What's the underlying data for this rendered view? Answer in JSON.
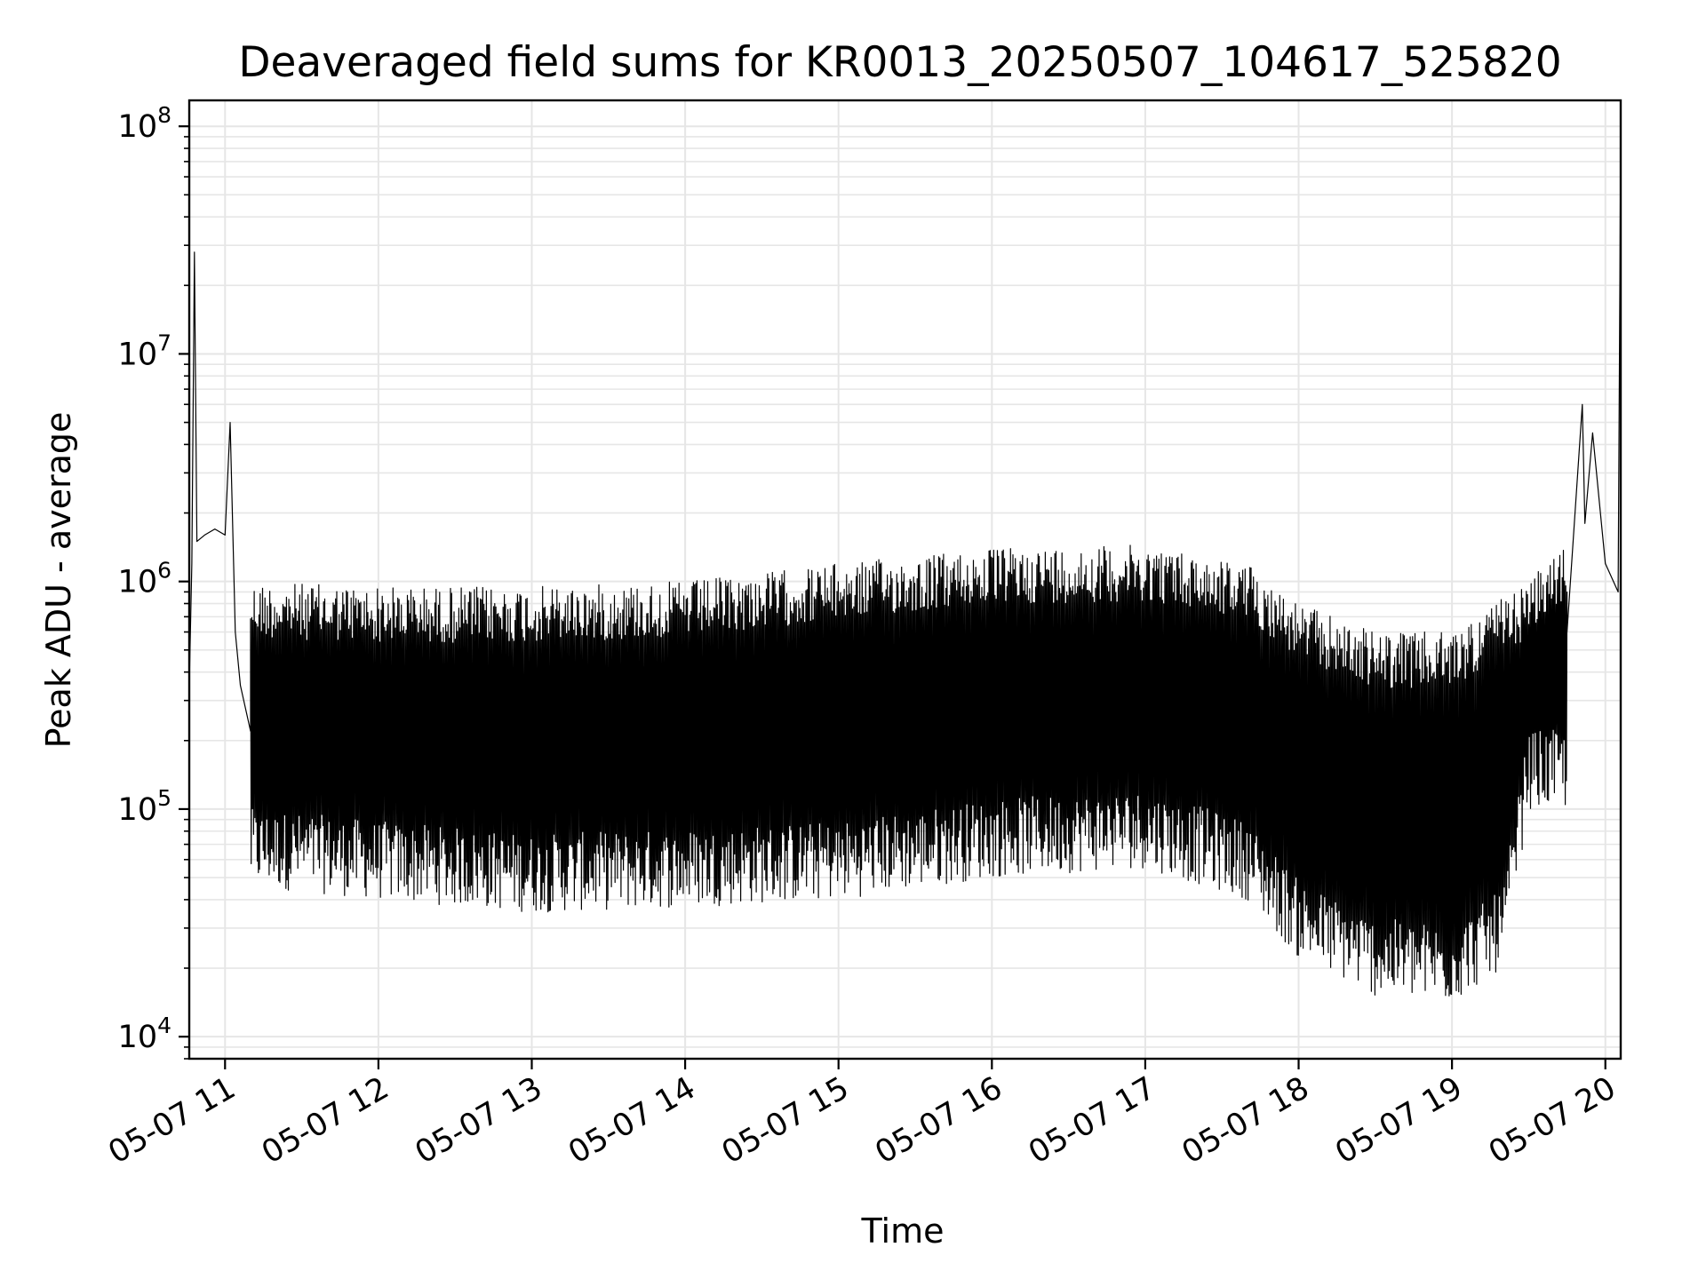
{
  "chart_data": {
    "type": "line",
    "title": "Deaveraged field sums for KR0013_20250507_104617_525820",
    "xlabel": "Time",
    "ylabel": "Peak ADU - average",
    "x_scale": "time",
    "y_scale": "log",
    "xlim": [
      "2025-05-07 10:46",
      "2025-05-07 20:06"
    ],
    "ylim": [
      8000,
      130000000
    ],
    "x_ticks": [
      {
        "value": "2025-05-07 11:00",
        "label": "05-07 11"
      },
      {
        "value": "2025-05-07 12:00",
        "label": "05-07 12"
      },
      {
        "value": "2025-05-07 13:00",
        "label": "05-07 13"
      },
      {
        "value": "2025-05-07 14:00",
        "label": "05-07 14"
      },
      {
        "value": "2025-05-07 15:00",
        "label": "05-07 15"
      },
      {
        "value": "2025-05-07 16:00",
        "label": "05-07 16"
      },
      {
        "value": "2025-05-07 17:00",
        "label": "05-07 17"
      },
      {
        "value": "2025-05-07 18:00",
        "label": "05-07 18"
      },
      {
        "value": "2025-05-07 19:00",
        "label": "05-07 19"
      },
      {
        "value": "2025-05-07 20:00",
        "label": "05-07 20"
      }
    ],
    "y_ticks": [
      {
        "value": 10000,
        "base": "10",
        "exp": "4"
      },
      {
        "value": 100000,
        "base": "10",
        "exp": "5"
      },
      {
        "value": 1000000,
        "base": "10",
        "exp": "6"
      },
      {
        "value": 10000000,
        "base": "10",
        "exp": "7"
      },
      {
        "value": 100000000,
        "base": "10",
        "exp": "8"
      }
    ],
    "grid": true,
    "grid_minor": true,
    "line_color": "#000000",
    "series": [
      {
        "values": [
          [
            "2025-05-07 10:46",
            350000
          ],
          [
            "2025-05-07 10:47",
            1200000
          ],
          [
            "2025-05-07 10:48",
            28000000
          ],
          [
            "2025-05-07 10:49",
            1500000
          ],
          [
            "2025-05-07 10:52",
            1600000
          ],
          [
            "2025-05-07 10:56",
            1700000
          ],
          [
            "2025-05-07 11:00",
            1600000
          ],
          [
            "2025-05-07 11:02",
            5000000
          ],
          [
            "2025-05-07 11:04",
            600000
          ],
          [
            "2025-05-07 11:06",
            350000
          ],
          [
            "2025-05-07 11:10",
            220000
          ],
          [
            "2025-05-07 11:15",
            200000
          ],
          [
            "2025-05-07 11:20",
            60000
          ],
          [
            "2025-05-07 11:30",
            22000
          ],
          [
            "2025-05-07 12:00",
            50000
          ],
          [
            "2025-05-07 12:30",
            60000
          ],
          [
            "2025-05-07 13:00",
            50000
          ],
          [
            "2025-05-07 13:30",
            50000
          ],
          [
            "2025-05-07 14:00",
            45000
          ],
          [
            "2025-05-07 14:30",
            45000
          ],
          [
            "2025-05-07 15:00",
            40000
          ],
          [
            "2025-05-07 15:30",
            50000
          ],
          [
            "2025-05-07 16:00",
            50000
          ],
          [
            "2025-05-07 16:30",
            55000
          ],
          [
            "2025-05-07 17:00",
            60000
          ],
          [
            "2025-05-07 17:30",
            50000
          ],
          [
            "2025-05-07 18:00",
            20000
          ],
          [
            "2025-05-07 18:30",
            15000
          ],
          [
            "2025-05-07 19:00",
            15000
          ],
          [
            "2025-05-07 19:15",
            20000
          ],
          [
            "2025-05-07 19:25",
            100000
          ],
          [
            "2025-05-07 19:35",
            300000
          ],
          [
            "2025-05-07 19:45",
            600000
          ],
          [
            "2025-05-07 19:51",
            6000000
          ],
          [
            "2025-05-07 19:52",
            1800000
          ],
          [
            "2025-05-07 19:55",
            4500000
          ],
          [
            "2025-05-07 20:00",
            1200000
          ],
          [
            "2025-05-07 20:05",
            900000
          ],
          [
            "2025-05-07 20:06",
            90000000
          ]
        ]
      }
    ],
    "envelope": {
      "note_x": "2025-05-07",
      "upper": [
        [
          "2025-05-07 11:10",
          1000000
        ],
        [
          "2025-05-07 12:00",
          950000
        ],
        [
          "2025-05-07 13:00",
          950000
        ],
        [
          "2025-05-07 14:00",
          1000000
        ],
        [
          "2025-05-07 15:00",
          1200000
        ],
        [
          "2025-05-07 16:00",
          1400000
        ],
        [
          "2025-05-07 17:00",
          1450000
        ],
        [
          "2025-05-07 17:40",
          1200000
        ],
        [
          "2025-05-07 18:00",
          800000
        ],
        [
          "2025-05-07 18:30",
          600000
        ],
        [
          "2025-05-07 19:00",
          600000
        ],
        [
          "2025-05-07 19:30",
          1000000
        ],
        [
          "2025-05-07 19:45",
          1500000
        ]
      ],
      "lower": [
        [
          "2025-05-07 11:15",
          45000
        ],
        [
          "2025-05-07 12:00",
          40000
        ],
        [
          "2025-05-07 13:00",
          35000
        ],
        [
          "2025-05-07 14:00",
          37000
        ],
        [
          "2025-05-07 15:00",
          40000
        ],
        [
          "2025-05-07 16:00",
          50000
        ],
        [
          "2025-05-07 17:00",
          55000
        ],
        [
          "2025-05-07 17:40",
          40000
        ],
        [
          "2025-05-07 18:00",
          22000
        ],
        [
          "2025-05-07 18:30",
          15000
        ],
        [
          "2025-05-07 19:00",
          14000
        ],
        [
          "2025-05-07 19:20",
          20000
        ],
        [
          "2025-05-07 19:30",
          100000
        ]
      ]
    }
  }
}
